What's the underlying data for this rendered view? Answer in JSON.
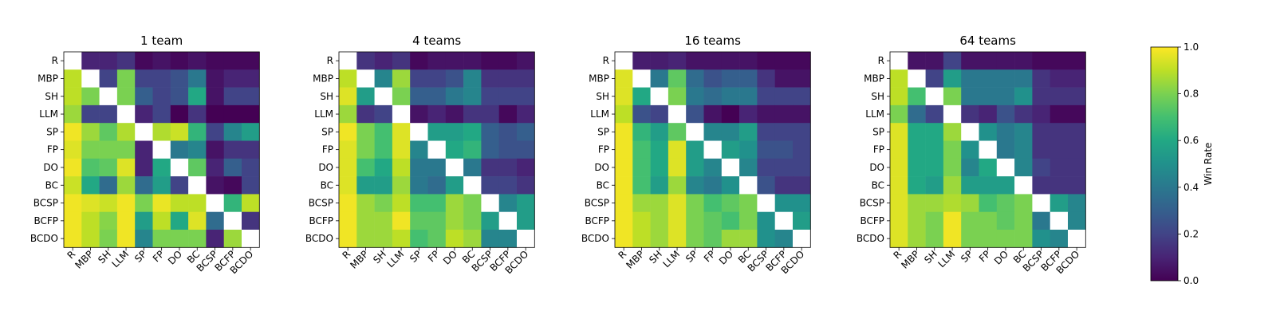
{
  "chart_data": {
    "type": "heatmap",
    "colormap": "viridis",
    "strategies": [
      "R",
      "MBP",
      "SH",
      "LLM",
      "SP",
      "FP",
      "DO",
      "BC",
      "BCSP",
      "BCFP",
      "BCDO"
    ],
    "diagonal": "blank",
    "value_range": [
      0,
      1
    ],
    "colorbar": {
      "label": "Win Rate",
      "ticks": [
        "0.0",
        "0.2",
        "0.4",
        "0.6",
        "0.8",
        "1.0"
      ],
      "tick_values": [
        0,
        0.2,
        0.4,
        0.6,
        0.8,
        1.0
      ]
    },
    "panels": [
      {
        "title": "1 team",
        "values": [
          [
            null,
            0.1,
            0.1,
            0.15,
            0.02,
            0.05,
            0.02,
            0.05,
            0.02,
            0.02,
            0.02
          ],
          [
            0.9,
            null,
            0.2,
            0.8,
            0.2,
            0.2,
            0.25,
            0.4,
            0.05,
            0.1,
            0.1
          ],
          [
            0.9,
            0.8,
            null,
            0.8,
            0.3,
            0.2,
            0.25,
            0.6,
            0.05,
            0.2,
            0.2
          ],
          [
            0.85,
            0.2,
            0.2,
            null,
            0.1,
            0.2,
            0.0,
            0.15,
            0.0,
            0.0,
            0.0
          ],
          [
            0.98,
            0.85,
            0.75,
            0.88,
            null,
            0.88,
            0.92,
            0.65,
            0.2,
            0.45,
            0.55
          ],
          [
            0.95,
            0.8,
            0.8,
            0.8,
            0.1,
            null,
            0.4,
            0.45,
            0.05,
            0.15,
            0.15
          ],
          [
            0.98,
            0.72,
            0.75,
            0.95,
            0.1,
            0.6,
            null,
            0.75,
            0.1,
            0.3,
            0.2
          ],
          [
            0.92,
            0.6,
            0.35,
            0.85,
            0.35,
            0.55,
            0.2,
            null,
            0.05,
            0.02,
            0.2
          ],
          [
            0.98,
            0.95,
            0.92,
            0.98,
            0.8,
            0.97,
            0.9,
            0.9,
            null,
            0.65,
            0.9
          ],
          [
            0.98,
            0.9,
            0.82,
            0.98,
            0.55,
            0.9,
            0.6,
            0.95,
            0.35,
            null,
            0.15
          ],
          [
            0.98,
            0.9,
            0.8,
            0.98,
            0.45,
            0.8,
            0.8,
            0.8,
            0.1,
            0.85,
            null
          ]
        ]
      },
      {
        "title": "4 teams",
        "values": [
          [
            null,
            0.15,
            0.1,
            0.15,
            0.02,
            0.05,
            0.05,
            0.05,
            0.02,
            0.02,
            0.05
          ],
          [
            0.9,
            null,
            0.45,
            0.85,
            0.2,
            0.2,
            0.25,
            0.45,
            0.15,
            0.15,
            0.15
          ],
          [
            0.95,
            0.55,
            null,
            0.8,
            0.3,
            0.3,
            0.4,
            0.45,
            0.2,
            0.2,
            0.2
          ],
          [
            0.85,
            0.15,
            0.2,
            null,
            0.05,
            0.1,
            0.05,
            0.15,
            0.15,
            0.02,
            0.1
          ],
          [
            0.98,
            0.8,
            0.7,
            0.95,
            null,
            0.55,
            0.55,
            0.6,
            0.3,
            0.25,
            0.3
          ],
          [
            0.95,
            0.8,
            0.7,
            0.95,
            0.45,
            null,
            0.6,
            0.65,
            0.3,
            0.25,
            0.25
          ],
          [
            0.95,
            0.7,
            0.6,
            0.9,
            0.4,
            0.4,
            null,
            0.4,
            0.15,
            0.15,
            0.1
          ],
          [
            0.95,
            0.55,
            0.55,
            0.85,
            0.4,
            0.35,
            0.55,
            null,
            0.2,
            0.2,
            0.15
          ],
          [
            0.98,
            0.85,
            0.8,
            0.9,
            0.7,
            0.7,
            0.85,
            0.8,
            null,
            0.45,
            0.55
          ],
          [
            0.98,
            0.85,
            0.85,
            0.98,
            0.75,
            0.75,
            0.85,
            0.8,
            0.55,
            null,
            0.55
          ],
          [
            0.98,
            0.85,
            0.85,
            0.9,
            0.7,
            0.75,
            0.9,
            0.85,
            0.45,
            0.45,
            null
          ]
        ]
      },
      {
        "title": "16 teams",
        "values": [
          [
            null,
            0.08,
            0.08,
            0.1,
            0.05,
            0.05,
            0.05,
            0.05,
            0.02,
            0.02,
            0.02
          ],
          [
            0.95,
            null,
            0.4,
            0.75,
            0.35,
            0.25,
            0.3,
            0.3,
            0.15,
            0.05,
            0.05
          ],
          [
            0.95,
            0.6,
            null,
            0.8,
            0.4,
            0.35,
            0.4,
            0.4,
            0.2,
            0.2,
            0.2
          ],
          [
            0.9,
            0.25,
            0.2,
            null,
            0.25,
            0.05,
            0.0,
            0.1,
            0.05,
            0.05,
            0.05
          ],
          [
            0.98,
            0.65,
            0.55,
            0.75,
            null,
            0.45,
            0.45,
            0.55,
            0.2,
            0.2,
            0.2
          ],
          [
            0.98,
            0.7,
            0.6,
            0.95,
            0.55,
            null,
            0.55,
            0.5,
            0.25,
            0.25,
            0.2
          ],
          [
            0.98,
            0.7,
            0.6,
            0.95,
            0.55,
            0.45,
            null,
            0.45,
            0.2,
            0.2,
            0.2
          ],
          [
            0.98,
            0.7,
            0.55,
            0.85,
            0.45,
            0.4,
            0.5,
            null,
            0.25,
            0.15,
            0.15
          ],
          [
            0.98,
            0.85,
            0.85,
            0.95,
            0.8,
            0.7,
            0.75,
            0.8,
            null,
            0.5,
            0.5
          ],
          [
            0.98,
            0.9,
            0.85,
            0.95,
            0.8,
            0.75,
            0.7,
            0.8,
            0.5,
            null,
            0.55
          ],
          [
            0.98,
            0.9,
            0.85,
            0.95,
            0.8,
            0.75,
            0.85,
            0.85,
            0.5,
            0.45,
            null
          ]
        ]
      },
      {
        "title": "64 teams",
        "values": [
          [
            null,
            0.05,
            0.05,
            0.2,
            0.05,
            0.05,
            0.05,
            0.05,
            0.02,
            0.02,
            0.02
          ],
          [
            0.9,
            null,
            0.2,
            0.55,
            0.4,
            0.4,
            0.4,
            0.4,
            0.15,
            0.1,
            0.1
          ],
          [
            0.9,
            0.7,
            null,
            0.8,
            0.4,
            0.4,
            0.4,
            0.5,
            0.15,
            0.15,
            0.15
          ],
          [
            0.8,
            0.35,
            0.2,
            null,
            0.15,
            0.1,
            0.25,
            0.15,
            0.1,
            0.02,
            0.02
          ],
          [
            0.95,
            0.6,
            0.6,
            0.85,
            null,
            0.5,
            0.4,
            0.45,
            0.15,
            0.15,
            0.15
          ],
          [
            0.95,
            0.6,
            0.6,
            0.8,
            0.5,
            null,
            0.4,
            0.45,
            0.15,
            0.15,
            0.15
          ],
          [
            0.95,
            0.6,
            0.6,
            0.8,
            0.45,
            0.6,
            null,
            0.45,
            0.2,
            0.15,
            0.15
          ],
          [
            0.95,
            0.6,
            0.55,
            0.85,
            0.55,
            0.55,
            0.55,
            null,
            0.15,
            0.15,
            0.15
          ],
          [
            0.95,
            0.85,
            0.85,
            0.88,
            0.85,
            0.7,
            0.75,
            0.8,
            null,
            0.55,
            0.45
          ],
          [
            0.95,
            0.85,
            0.8,
            0.98,
            0.8,
            0.8,
            0.75,
            0.8,
            0.4,
            null,
            0.45
          ],
          [
            0.95,
            0.85,
            0.8,
            0.98,
            0.8,
            0.8,
            0.8,
            0.8,
            0.5,
            0.45,
            null
          ]
        ]
      }
    ]
  }
}
